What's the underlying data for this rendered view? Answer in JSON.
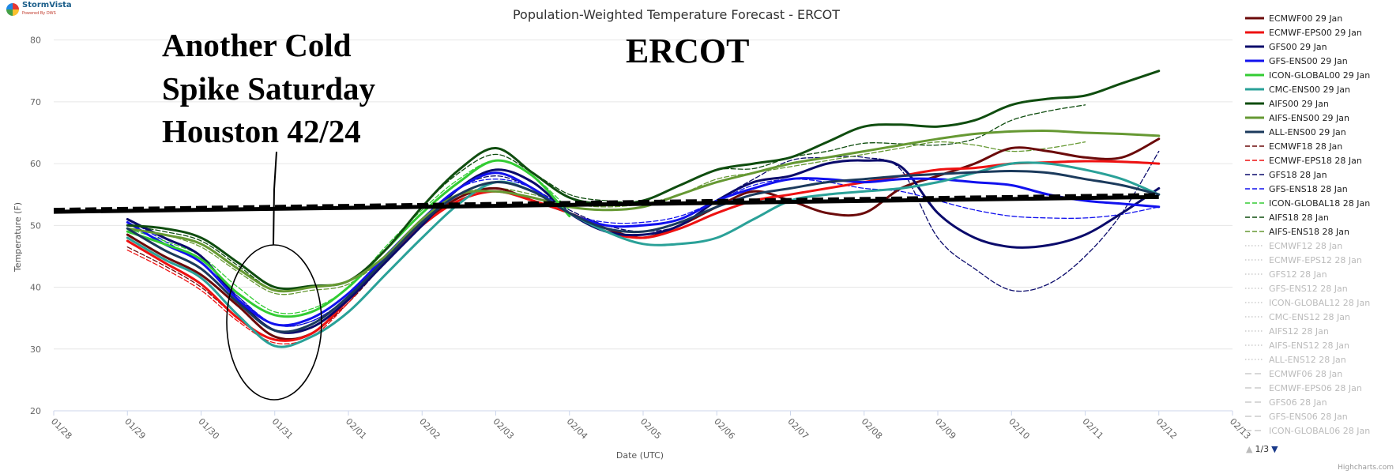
{
  "brand": {
    "name": "StormVista",
    "tagline": "Powered By DWS",
    "credits": "Highcharts.com"
  },
  "annotations": {
    "ercot": "ERCOT",
    "callout": [
      "Another Cold",
      "Spike Saturday",
      "Houston 42/24"
    ]
  },
  "legend_pager": {
    "label": "1/3"
  },
  "colors": {
    "gridline": "#e6e6e6",
    "axis": "#ccd6eb",
    "normals": "#000000",
    "hidden_series": "#cccccc"
  },
  "chart_data": {
    "type": "line",
    "title": "Population-Weighted Temperature Forecast - ERCOT",
    "xlabel": "Date (UTC)",
    "ylabel": "Temperature (F)",
    "ylim": [
      20,
      82
    ],
    "yticks": [
      20,
      30,
      40,
      50,
      60,
      70,
      80
    ],
    "xlim": [
      0,
      16
    ],
    "xticks": [
      "01/28",
      "01/29",
      "01/30",
      "01/31",
      "02/01",
      "02/02",
      "02/03",
      "02/04",
      "02/05",
      "02/06",
      "02/07",
      "02/08",
      "02/09",
      "02/10",
      "02/11",
      "02/12",
      "02/13"
    ],
    "grid": true,
    "legend_position": "right",
    "normals": {
      "x": [
        0,
        15
      ],
      "y": [
        52.2,
        54.6
      ]
    },
    "series": [
      {
        "name": "ECMWF00 29 Jan",
        "color": "#6b0a0a",
        "dash": "solid",
        "width": 3,
        "x": [
          1,
          1.5,
          2,
          2.5,
          3,
          3.5,
          4,
          4.5,
          5,
          5.5,
          6,
          6.5,
          7,
          7.5,
          8,
          8.5,
          9,
          9.5,
          10,
          10.5,
          11,
          11.5,
          12,
          12.5,
          13,
          13.5,
          14,
          14.5,
          15
        ],
        "y": [
          48.5,
          45,
          42,
          37,
          32,
          32.5,
          38,
          44,
          50,
          54.5,
          56,
          54,
          52,
          49.5,
          48,
          50,
          53,
          55.5,
          54,
          52,
          52,
          56,
          58,
          60,
          62.5,
          62,
          61,
          61,
          64
        ]
      },
      {
        "name": "ECMWF-EPS00 29 Jan",
        "color": "#ee1111",
        "dash": "solid",
        "width": 3,
        "x": [
          1,
          1.5,
          2,
          2.5,
          3,
          3.5,
          4,
          4.5,
          5,
          5.5,
          6,
          6.5,
          7,
          7.5,
          8,
          8.5,
          9,
          9.5,
          10,
          10.5,
          11,
          11.5,
          12,
          12.5,
          13,
          13.5,
          14,
          14.5,
          15
        ],
        "y": [
          47.5,
          44,
          40.5,
          35,
          31.5,
          32.5,
          38,
          44.5,
          50,
          54,
          55.5,
          54,
          52,
          49,
          48,
          49.5,
          52,
          54,
          55,
          56,
          57,
          58,
          59,
          59.3,
          60,
          60.2,
          60.4,
          60.3,
          60
        ]
      },
      {
        "name": "GFS00 29 Jan",
        "color": "#0a0a6b",
        "dash": "solid",
        "width": 3,
        "x": [
          1,
          1.5,
          2,
          2.5,
          3,
          3.5,
          4,
          4.5,
          5,
          5.5,
          6,
          6.5,
          7,
          7.5,
          8,
          8.5,
          9,
          9.5,
          10,
          10.5,
          11,
          11.5,
          12,
          12.5,
          13,
          13.5,
          14,
          14.5,
          15
        ],
        "y": [
          51,
          48,
          45,
          38,
          33,
          33.5,
          38,
          44,
          50,
          56,
          59,
          57,
          52,
          49,
          48.5,
          50,
          54,
          57,
          58,
          60,
          60.5,
          59.5,
          52,
          48,
          46.5,
          46.8,
          48.5,
          52,
          56
        ]
      },
      {
        "name": "GFS-ENS00 29 Jan",
        "color": "#1111ee",
        "dash": "solid",
        "width": 3,
        "x": [
          1,
          1.5,
          2,
          2.5,
          3,
          3.5,
          4,
          4.5,
          5,
          5.5,
          6,
          6.5,
          7,
          7.5,
          8,
          8.5,
          9,
          9.5,
          10,
          10.5,
          11,
          11.5,
          12,
          12.5,
          13,
          13.5,
          14,
          14.5,
          15
        ],
        "y": [
          50.5,
          47,
          44,
          38,
          34,
          35,
          39,
          45,
          51,
          56,
          58.5,
          56,
          52,
          50,
          50,
          51,
          54,
          56,
          57.5,
          57.5,
          57,
          57.5,
          57.5,
          57,
          56.5,
          55,
          54,
          53.5,
          53
        ]
      },
      {
        "name": "ICON-GLOBAL00 29 Jan",
        "color": "#33cc33",
        "dash": "solid",
        "width": 3,
        "x": [
          1,
          1.5,
          2,
          2.5,
          3,
          3.5,
          4,
          4.5,
          5,
          5.5,
          6,
          6.5,
          7
        ],
        "y": [
          49,
          47,
          44.5,
          39,
          35.5,
          36,
          40,
          46,
          52,
          57,
          60.5,
          58,
          51.5
        ]
      },
      {
        "name": "CMC-ENS00 29 Jan",
        "color": "#2aa198",
        "dash": "solid",
        "width": 3,
        "x": [
          1,
          1.5,
          2,
          2.5,
          3,
          3.5,
          4,
          4.5,
          5,
          5.5,
          6,
          6.5,
          7,
          7.5,
          8,
          8.5,
          9,
          9.5,
          10,
          10.5,
          11,
          11.5,
          12,
          12.5,
          13,
          13.5,
          14,
          14.5,
          15
        ],
        "y": [
          48,
          44.5,
          41.5,
          35.5,
          30.5,
          32,
          36,
          42,
          48,
          53.5,
          57,
          55.5,
          52,
          49,
          47,
          47,
          48,
          51,
          54,
          55,
          55.5,
          56,
          57,
          58.5,
          60,
          60,
          59,
          57.5,
          55
        ]
      },
      {
        "name": "AIFS00 29 Jan",
        "color": "#0f4d0f",
        "dash": "solid",
        "width": 3,
        "x": [
          1,
          1.5,
          2,
          2.5,
          3,
          3.5,
          4,
          4.5,
          5,
          5.5,
          6,
          6.5,
          7,
          7.5,
          8,
          8.5,
          9,
          9.5,
          10,
          10.5,
          11,
          11.5,
          12,
          12.5,
          13,
          13.5,
          14,
          14.5,
          15
        ],
        "y": [
          50,
          49.5,
          48,
          44,
          40,
          40.2,
          41,
          46,
          53,
          59,
          62.5,
          58.5,
          54.5,
          53.5,
          54,
          56.5,
          59,
          60,
          61,
          63.5,
          66,
          66.3,
          66,
          67,
          69.5,
          70.5,
          71,
          73,
          75
        ]
      },
      {
        "name": "AIFS-ENS00 29 Jan",
        "color": "#669933",
        "dash": "solid",
        "width": 3,
        "x": [
          1,
          1.5,
          2,
          2.5,
          3,
          3.5,
          4,
          4.5,
          5,
          5.5,
          6,
          6.5,
          7,
          7.5,
          8,
          8.5,
          9,
          9.5,
          10,
          10.5,
          11,
          11.5,
          12,
          12.5,
          13,
          13.5,
          14,
          14.5,
          15
        ],
        "y": [
          49.5,
          48.5,
          47,
          43,
          39.5,
          40,
          41,
          45,
          51,
          55,
          55.5,
          54.5,
          53,
          52.5,
          53,
          55,
          57,
          58.5,
          60,
          61,
          62,
          63,
          64,
          64.8,
          65.2,
          65.3,
          65,
          64.8,
          64.5
        ]
      },
      {
        "name": "ALL-ENS00 29 Jan",
        "color": "#1b3a5c",
        "dash": "solid",
        "width": 3,
        "x": [
          1,
          1.5,
          2,
          2.5,
          3,
          3.5,
          4,
          4.5,
          5,
          5.5,
          6,
          6.5,
          7,
          7.5,
          8,
          8.5,
          9,
          9.5,
          10,
          10.5,
          11,
          11.5,
          12,
          12.5,
          13,
          13.5,
          14,
          14.5,
          15
        ],
        "y": [
          49.5,
          46,
          43,
          37.5,
          33,
          34,
          38.5,
          44.5,
          50.5,
          55,
          57,
          55.5,
          52,
          49.5,
          49,
          50.5,
          53,
          55,
          56,
          57,
          57.5,
          58,
          58.3,
          58.6,
          58.8,
          58.5,
          57.5,
          56.5,
          55
        ]
      },
      {
        "name": "ECMWF18 28 Jan",
        "color": "#6b0a0a",
        "dash": "dash",
        "width": 1.3,
        "x": [
          1,
          1.5,
          2,
          2.5,
          3,
          3.5,
          4,
          4.5,
          5,
          5.5,
          6,
          6.5,
          7
        ],
        "y": [
          46.5,
          43.5,
          40,
          35,
          31.5,
          32.5,
          37.5,
          44,
          50,
          54.5,
          56,
          54,
          52
        ]
      },
      {
        "name": "ECMWF-EPS18 28 Jan",
        "color": "#ee1111",
        "dash": "dash",
        "width": 1.3,
        "x": [
          1,
          1.5,
          2,
          2.5,
          3,
          3.5,
          4,
          4.5,
          5,
          5.5,
          6,
          6.5,
          7
        ],
        "y": [
          46,
          43,
          39.5,
          34.5,
          31,
          32,
          37.5,
          44.5,
          50,
          54.5,
          55.5,
          54,
          52
        ]
      },
      {
        "name": "GFS18 28 Jan",
        "color": "#0a0a6b",
        "dash": "dash",
        "width": 1.3,
        "x": [
          1,
          1.5,
          2,
          2.5,
          3,
          3.5,
          4,
          4.5,
          5,
          5.5,
          6,
          6.5,
          7,
          7.5,
          8,
          8.5,
          9,
          9.5,
          10,
          10.5,
          11,
          11.5,
          12,
          12.5,
          13,
          13.5,
          14,
          14.5,
          15
        ],
        "y": [
          51,
          48,
          45,
          38.5,
          34,
          34.5,
          38.5,
          44.5,
          50.5,
          56,
          58,
          56,
          52.5,
          50,
          49,
          50,
          54,
          57.5,
          60.5,
          61,
          61,
          59,
          48,
          43,
          39.5,
          40.5,
          45,
          52,
          62
        ]
      },
      {
        "name": "GFS-ENS18 28 Jan",
        "color": "#1111ee",
        "dash": "dash",
        "width": 1.3,
        "x": [
          1,
          1.5,
          2,
          2.5,
          3,
          3.5,
          4,
          4.5,
          5,
          5.5,
          6,
          6.5,
          7,
          7.5,
          8,
          8.5,
          9,
          9.5,
          10,
          10.5,
          11,
          11.5,
          12,
          12.5,
          13,
          13.5,
          14,
          14.5,
          15
        ],
        "y": [
          51,
          47.5,
          44,
          38.5,
          34,
          34.5,
          38.5,
          45,
          51,
          56,
          57.5,
          56,
          52,
          50.5,
          50.5,
          51.5,
          54,
          56.5,
          57.5,
          57,
          56,
          55.5,
          54,
          52.5,
          51.5,
          51.2,
          51.2,
          51.8,
          53
        ]
      },
      {
        "name": "ICON-GLOBAL18 28 Jan",
        "color": "#33cc33",
        "dash": "dash",
        "width": 1.3,
        "x": [
          1,
          1.5,
          2,
          2.5,
          3,
          3.5,
          4,
          4.5,
          5,
          5.5,
          6,
          6.5,
          7
        ],
        "y": [
          49.5,
          47.5,
          45,
          40,
          36,
          36.5,
          40,
          46.5,
          52.5,
          57.5,
          60.5,
          58,
          52.5
        ]
      },
      {
        "name": "AIFS18 28 Jan",
        "color": "#0f4d0f",
        "dash": "dash",
        "width": 1.3,
        "x": [
          1,
          1.5,
          2,
          2.5,
          3,
          3.5,
          4,
          4.5,
          5,
          5.5,
          6,
          6.5,
          7,
          7.5,
          8,
          8.5,
          9,
          9.5,
          10,
          10.5,
          11,
          11.5,
          12,
          12.5,
          13,
          13.5,
          14
        ],
        "y": [
          50,
          49,
          47.5,
          43.5,
          39.5,
          40,
          41,
          46,
          53,
          58.5,
          61.5,
          58.5,
          55,
          54,
          54,
          56.5,
          59,
          59.2,
          61,
          62,
          63.3,
          63.2,
          63,
          64,
          67,
          68.5,
          69.5
        ]
      },
      {
        "name": "AIFS-ENS18 28 Jan",
        "color": "#669933",
        "dash": "dash",
        "width": 1.3,
        "x": [
          1,
          1.5,
          2,
          2.5,
          3,
          3.5,
          4,
          4.5,
          5,
          5.5,
          6,
          6.5,
          7,
          7.5,
          8,
          8.5,
          9,
          9.5,
          10,
          10.5,
          11,
          11.5,
          12,
          12.5,
          13,
          13.5,
          14
        ],
        "y": [
          49.5,
          48.5,
          46.5,
          42.5,
          39,
          39.5,
          40.5,
          45,
          51,
          55,
          56,
          55,
          53.5,
          53,
          53.5,
          55,
          57.5,
          58.5,
          59.5,
          60.5,
          61.5,
          62.5,
          63.5,
          63,
          62,
          62.5,
          63.5
        ]
      }
    ],
    "hidden_series": [
      {
        "name": "ECMWF12 28 Jan",
        "dash": "dot"
      },
      {
        "name": "ECMWF-EPS12 28 Jan",
        "dash": "dot"
      },
      {
        "name": "GFS12 28 Jan",
        "dash": "dot"
      },
      {
        "name": "GFS-ENS12 28 Jan",
        "dash": "dot"
      },
      {
        "name": "ICON-GLOBAL12 28 Jan",
        "dash": "dot"
      },
      {
        "name": "CMC-ENS12 28 Jan",
        "dash": "dot"
      },
      {
        "name": "AIFS12 28 Jan",
        "dash": "dot"
      },
      {
        "name": "AIFS-ENS12 28 Jan",
        "dash": "dot"
      },
      {
        "name": "ALL-ENS12 28 Jan",
        "dash": "dot"
      },
      {
        "name": "ECMWF06 28 Jan",
        "dash": "longdash"
      },
      {
        "name": "ECMWF-EPS06 28 Jan",
        "dash": "longdash"
      },
      {
        "name": "GFS06 28 Jan",
        "dash": "longdash"
      },
      {
        "name": "GFS-ENS06 28 Jan",
        "dash": "longdash"
      },
      {
        "name": "ICON-GLOBAL06 28 Jan",
        "dash": "longdash"
      }
    ]
  }
}
